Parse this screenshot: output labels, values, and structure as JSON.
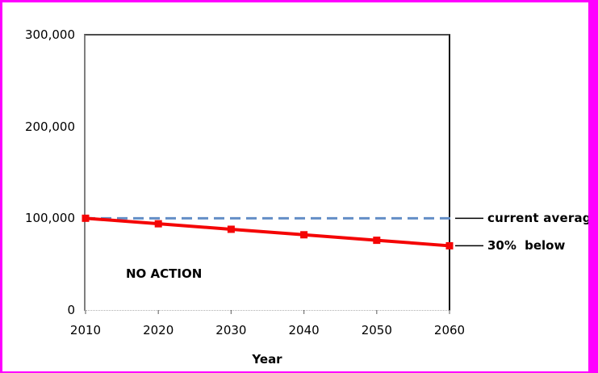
{
  "frame": {
    "border_color": "#FF00FF",
    "background": "#FFFFFF"
  },
  "chart_data": {
    "type": "line",
    "title": "",
    "xlabel": "Year",
    "ylabel": "",
    "xlim": [
      2010,
      2060
    ],
    "ylim": [
      0,
      300000
    ],
    "grid": false,
    "legend": "none",
    "x_ticks": [
      2010,
      2020,
      2030,
      2040,
      2050,
      2060
    ],
    "y_ticks": [
      {
        "value": 0,
        "label": "0"
      },
      {
        "value": 100000,
        "label": "100,000"
      },
      {
        "value": 200000,
        "label": "200,000"
      },
      {
        "value": 300000,
        "label": "300,000"
      }
    ],
    "series": [
      {
        "name": "NO ACTION",
        "type": "line",
        "color": "#F40505",
        "marker": "square",
        "x": [
          2010,
          2020,
          2030,
          2040,
          2050,
          2060
        ],
        "values": [
          100000,
          94000,
          88000,
          82000,
          76000,
          70000
        ]
      },
      {
        "name": "current average",
        "type": "reference-line",
        "style": "dashed",
        "color": "#638EC6",
        "value": 100000
      }
    ],
    "annotations": [
      {
        "id": "no-action",
        "text": "NO ACTION"
      },
      {
        "id": "current-average",
        "text": "current average",
        "points_to": "dashed reference line at 100,000"
      },
      {
        "id": "thirty-below",
        "text": "30% below",
        "points_to": "NO ACTION series endpoint at year 2060"
      }
    ]
  },
  "colors": {
    "axis_left": "#7F7F7F",
    "axis_right": "#141414",
    "axis_top": "#4D4D4D",
    "axis_bottom": "#B0B0B0",
    "tick": "#7F7F7F",
    "leader_line": "#000000",
    "text": "#000000"
  }
}
